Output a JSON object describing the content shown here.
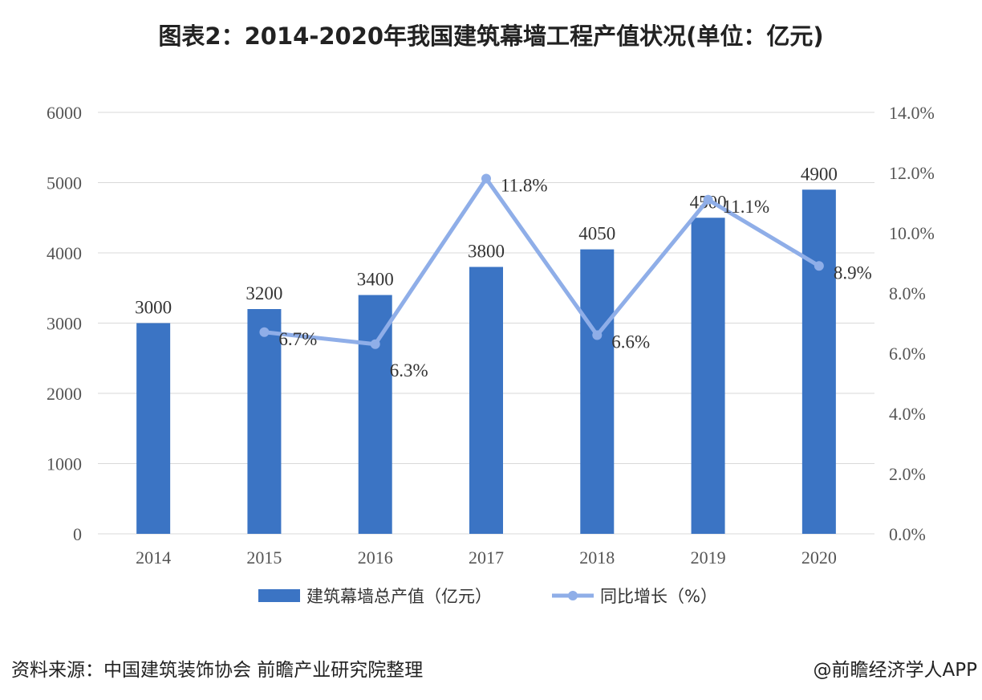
{
  "title": "图表2：2014-2020年我国建筑幕墙工程产值状况(单位：亿元)",
  "source": "资料来源：中国建筑装饰协会 前瞻产业研究院整理",
  "credit": "@前瞻经济学人APP",
  "colors": {
    "bar": "#3B74C4",
    "line": "#8FAEE8",
    "grid": "#D9D9D9"
  },
  "chart_data": {
    "type": "bar+line",
    "title": "图表2：2014-2020年我国建筑幕墙工程产值状况(单位：亿元)",
    "categories": [
      "2014",
      "2015",
      "2016",
      "2017",
      "2018",
      "2019",
      "2020"
    ],
    "y_left": {
      "range": [
        0,
        6000
      ],
      "ticks": [
        "0",
        "1000",
        "2000",
        "3000",
        "4000",
        "5000",
        "6000"
      ]
    },
    "y_right": {
      "range": [
        0,
        14
      ],
      "ticks": [
        "0.0%",
        "2.0%",
        "4.0%",
        "6.0%",
        "8.0%",
        "10.0%",
        "12.0%",
        "14.0%"
      ]
    },
    "grid": true,
    "legend_position": "bottom",
    "series": [
      {
        "name": "建筑幕墙总产值（亿元）",
        "type": "bar",
        "axis": "left",
        "values": [
          3000,
          3200,
          3400,
          3800,
          4050,
          4500,
          4900
        ],
        "labels": [
          "3000",
          "3200",
          "3400",
          "3800",
          "4050",
          "4500",
          "4900"
        ]
      },
      {
        "name": "同比增长（%）",
        "type": "line",
        "axis": "right",
        "values": [
          null,
          6.7,
          6.3,
          11.8,
          6.6,
          11.1,
          8.9
        ],
        "labels": [
          "",
          "6.7%",
          "6.3%",
          "11.8%",
          "6.6%",
          "11.1%",
          "8.9%"
        ]
      }
    ]
  }
}
